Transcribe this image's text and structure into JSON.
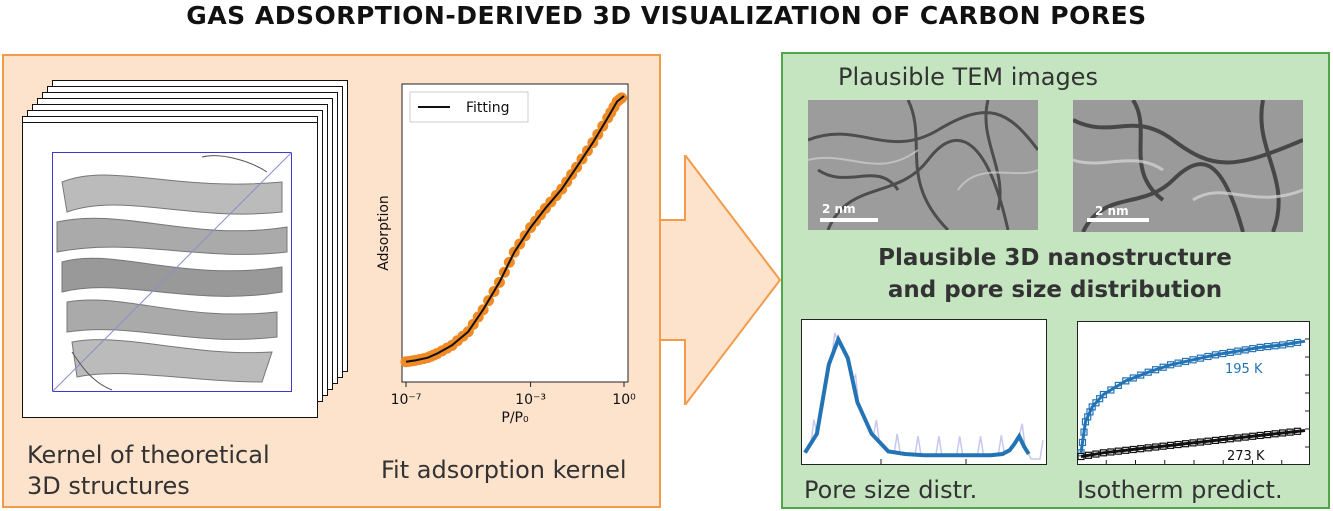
{
  "title": "GAS ADSORPTION-DERIVED 3D VISUALIZATION OF CARBON PORES",
  "left_panel": {
    "kernel_caption_line1": "Kernel of theoretical",
    "kernel_caption_line2": "3D structures",
    "fit_caption": "Fit adsorption kernel"
  },
  "right_panel": {
    "tem_heading": "Plausible TEM images",
    "tem_scale_1": "2 nm",
    "tem_scale_2": "2 nm",
    "center_line1": "Plausible 3D nanostructure",
    "center_line2": "and pore size distribution",
    "psd_caption": "Pore size distr.",
    "isotherm_caption": "Isotherm predict."
  },
  "chart_data": [
    {
      "type": "scatter",
      "ylabel": "Adsorption",
      "xlabel": "P/P₀",
      "x_scale": "log",
      "xlim": [
        1e-07,
        1
      ],
      "xticks": [
        "10⁻⁷",
        "10⁻³",
        "10⁰"
      ],
      "legend": "Fitting",
      "legend_position": "top-left",
      "colors": {
        "points": "#f08a24",
        "fit": "#111111"
      },
      "series": [
        {
          "name": "Fitting",
          "x": [
            1e-07,
            2e-07,
            5e-07,
            1e-06,
            3e-06,
            1e-05,
            3e-05,
            0.0001,
            0.0003,
            0.001,
            0.003,
            0.01,
            0.03,
            0.1,
            0.3,
            0.6,
            1.0
          ],
          "y": [
            0.03,
            0.035,
            0.045,
            0.06,
            0.09,
            0.14,
            0.22,
            0.32,
            0.43,
            0.52,
            0.59,
            0.66,
            0.74,
            0.83,
            0.92,
            0.98,
            1.0
          ]
        }
      ]
    },
    {
      "type": "line",
      "colors": {
        "line": "#2474b5",
        "raw": "#c7c7f0"
      },
      "xlim": [
        0,
        1
      ],
      "ylim": [
        0,
        1
      ],
      "series": [
        {
          "x": [
            0,
            0.05,
            0.1,
            0.14,
            0.18,
            0.22,
            0.28,
            0.35,
            0.42,
            0.5,
            0.6,
            0.7,
            0.78,
            0.83,
            0.86,
            0.88,
            0.9,
            0.92,
            0.94
          ],
          "y": [
            0.05,
            0.2,
            0.75,
            0.95,
            0.8,
            0.45,
            0.2,
            0.06,
            0.04,
            0.03,
            0.03,
            0.03,
            0.03,
            0.04,
            0.07,
            0.12,
            0.18,
            0.1,
            0.04
          ]
        }
      ]
    },
    {
      "type": "scatter",
      "colors": {
        "195K": "#2474b5",
        "273K": "#111111"
      },
      "xlim": [
        0,
        1
      ],
      "ylim": [
        0,
        1
      ],
      "series": [
        {
          "name": "195 K",
          "x": [
            0,
            0.02,
            0.05,
            0.1,
            0.2,
            0.3,
            0.4,
            0.5,
            0.6,
            0.7,
            0.8,
            0.9,
            1.0
          ],
          "y": [
            0.05,
            0.3,
            0.42,
            0.52,
            0.63,
            0.7,
            0.76,
            0.8,
            0.84,
            0.87,
            0.9,
            0.92,
            0.95
          ]
        },
        {
          "name": "273 K",
          "x": [
            0,
            0.1,
            0.2,
            0.3,
            0.4,
            0.5,
            0.6,
            0.7,
            0.8,
            0.9,
            1.0
          ],
          "y": [
            0.02,
            0.05,
            0.07,
            0.09,
            0.11,
            0.13,
            0.15,
            0.17,
            0.19,
            0.21,
            0.23
          ]
        }
      ]
    }
  ]
}
